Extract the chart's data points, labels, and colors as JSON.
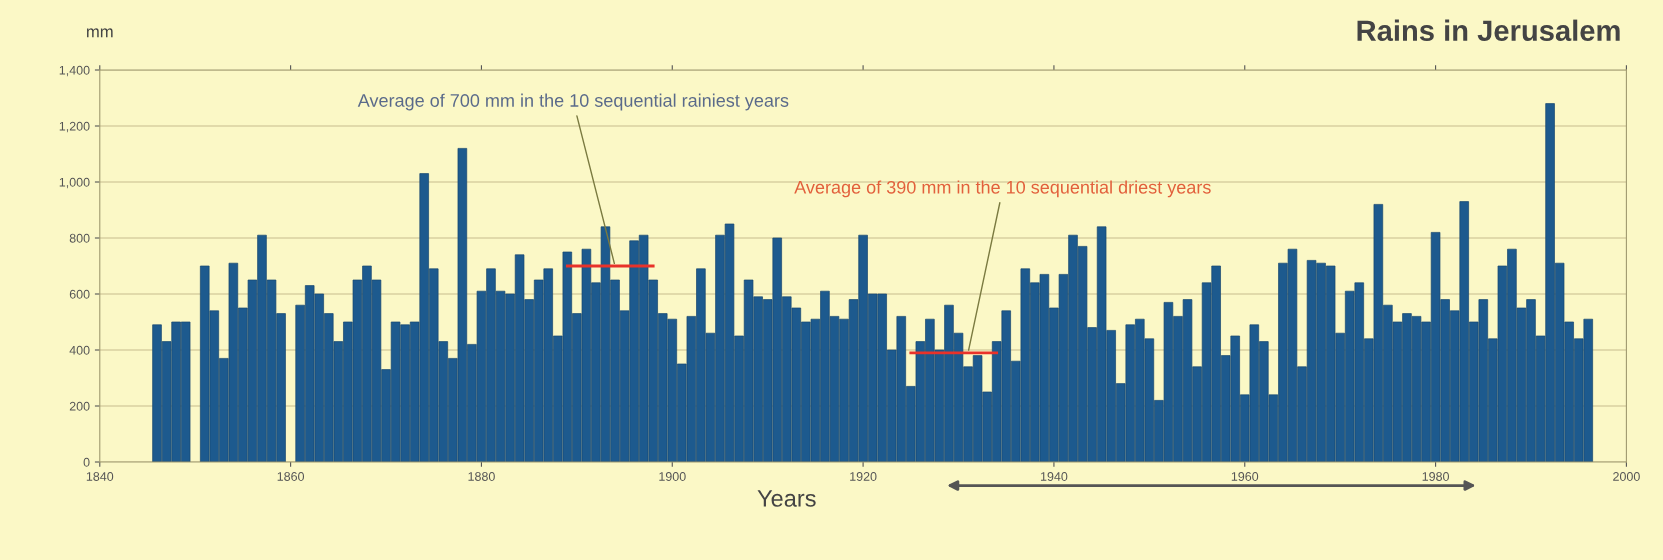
{
  "chart_data": {
    "type": "bar",
    "title": "Rains in Jerusalem",
    "xlabel": "Years",
    "ylabel": "mm",
    "xlim": [
      1840,
      2000
    ],
    "xticks": [
      1840,
      1860,
      1880,
      1900,
      1920,
      1940,
      1960,
      1980,
      2000
    ],
    "ylim": [
      0,
      1400
    ],
    "yticks": [
      0,
      200,
      400,
      600,
      800,
      {
        "value": 1000,
        "label": "1,000"
      },
      {
        "value": 1200,
        "label": "1,200"
      },
      {
        "value": 1400,
        "label": "1,400"
      }
    ],
    "grid": "y",
    "series": [
      {
        "color": "#1d5a8e",
        "x": [
          1846,
          1847,
          1848,
          1849,
          1850,
          1851,
          1852,
          1853,
          1854,
          1855,
          1856,
          1857,
          1858,
          1859,
          1860,
          1861,
          1862,
          1863,
          1864,
          1865,
          1866,
          1867,
          1868,
          1869,
          1870,
          1871,
          1872,
          1873,
          1874,
          1875,
          1876,
          1877,
          1878,
          1879,
          1880,
          1881,
          1882,
          1883,
          1884,
          1885,
          1886,
          1887,
          1888,
          1889,
          1890,
          1891,
          1892,
          1893,
          1894,
          1895,
          1896,
          1897,
          1898,
          1899,
          1900,
          1901,
          1902,
          1903,
          1904,
          1905,
          1906,
          1907,
          1908,
          1909,
          1910,
          1911,
          1912,
          1913,
          1914,
          1915,
          1916,
          1917,
          1918,
          1919,
          1920,
          1921,
          1922,
          1923,
          1924,
          1925,
          1926,
          1927,
          1928,
          1929,
          1930,
          1931,
          1932,
          1933,
          1934,
          1935,
          1936,
          1937,
          1938,
          1939,
          1940,
          1941,
          1942,
          1943,
          1944,
          1945,
          1946,
          1947,
          1948,
          1949,
          1950,
          1951,
          1952,
          1953,
          1954,
          1955,
          1956,
          1957,
          1958,
          1959,
          1960,
          1961,
          1962,
          1963,
          1964,
          1965,
          1966,
          1967,
          1968,
          1969,
          1970,
          1971,
          1972,
          1973,
          1974,
          1975,
          1976,
          1977,
          1978,
          1979,
          1980,
          1981,
          1982,
          1983,
          1984,
          1985,
          1986,
          1987,
          1988,
          1989,
          1990,
          1991,
          1992,
          1993,
          1994,
          1995,
          1996
        ],
        "values": [
          490,
          430,
          500,
          500,
          null,
          700,
          540,
          370,
          710,
          550,
          650,
          810,
          650,
          530,
          null,
          560,
          630,
          600,
          530,
          430,
          500,
          650,
          700,
          650,
          330,
          500,
          490,
          500,
          1030,
          690,
          430,
          370,
          1120,
          420,
          610,
          690,
          610,
          600,
          740,
          580,
          650,
          690,
          450,
          750,
          530,
          760,
          640,
          840,
          650,
          540,
          790,
          810,
          650,
          530,
          510,
          350,
          520,
          690,
          460,
          810,
          850,
          450,
          650,
          590,
          580,
          800,
          590,
          550,
          500,
          510,
          610,
          520,
          510,
          580,
          810,
          600,
          600,
          400,
          520,
          270,
          430,
          510,
          400,
          560,
          460,
          340,
          380,
          250,
          430,
          540,
          360,
          690,
          640,
          670,
          550,
          670,
          810,
          770,
          480,
          840,
          470,
          280,
          490,
          510,
          440,
          220,
          570,
          520,
          580,
          340,
          640,
          700,
          380,
          450,
          240,
          490,
          430,
          240,
          710,
          760,
          340,
          720,
          710,
          700,
          460,
          610,
          640,
          440,
          920,
          560,
          500,
          530,
          520,
          500,
          820,
          580,
          540,
          930,
          500,
          580,
          440,
          700,
          760,
          550,
          580,
          450,
          1280,
          710,
          500,
          440,
          510
        ]
      },
      {
        "type": "line",
        "color": "#e8322a",
        "x": [
          1889,
          1898
        ],
        "values": [
          700,
          700
        ]
      },
      {
        "type": "line",
        "color": "#e8322a",
        "x": [
          1925,
          1934
        ],
        "values": [
          390,
          390
        ]
      }
    ],
    "annotations": [
      {
        "text": "Average of 700 mm in the 10 sequential rainiest years",
        "x": 1894,
        "y": 700
      },
      {
        "text": "Average of 390 mm in the 10 sequential driest years",
        "x": 1931,
        "y": 390
      }
    ]
  }
}
